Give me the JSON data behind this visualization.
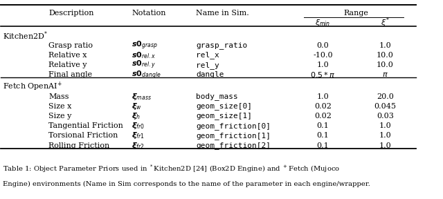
{
  "bg_color": "#ffffff",
  "text_color": "#000000",
  "font_size": 8.0,
  "caption_font_size": 7.2,
  "col_x": {
    "section": 0.005,
    "desc": 0.115,
    "notation": 0.315,
    "sim": 0.47,
    "xi_min": 0.735,
    "xi_star": 0.875
  },
  "kitchen_notations": [
    "$\\boldsymbol{s0}_{grasp}$",
    "$\\boldsymbol{s0}_{rel.x}$",
    "$\\boldsymbol{s0}_{rel.y}$",
    "$\\boldsymbol{s0}_{dangle}$"
  ],
  "fetch_notations": [
    "$\\boldsymbol{\\xi}_{mass}$",
    "$\\boldsymbol{\\xi}_{w}$",
    "$\\boldsymbol{\\xi}_{h}$",
    "$\\boldsymbol{\\xi}_{fr0}$",
    "$\\boldsymbol{\\xi}_{fr1}$",
    "$\\boldsymbol{\\xi}_{fr2}$"
  ],
  "kitchen_rows": [
    {
      "desc": "Grasp ratio",
      "sim": "grasp_ratio",
      "xi_min": "0.0",
      "xi_star": "1.0"
    },
    {
      "desc": "Relative x",
      "sim": "rel_x",
      "xi_min": "-10.0",
      "xi_star": "10.0"
    },
    {
      "desc": "Relative y",
      "sim": "rel_y",
      "xi_min": "1.0",
      "xi_star": "10.0"
    },
    {
      "desc": "Final angle",
      "sim": "dangle",
      "xi_min": "$0.5 * \\pi$",
      "xi_star": "$\\pi$"
    }
  ],
  "fetch_rows": [
    {
      "desc": "Mass",
      "sim": "body_mass",
      "xi_min": "1.0",
      "xi_star": "20.0"
    },
    {
      "desc": "Size x",
      "sim": "geom_size[0]",
      "xi_min": "0.02",
      "xi_star": "0.045"
    },
    {
      "desc": "Size y",
      "sim": "geom_size[1]",
      "xi_min": "0.02",
      "xi_star": "0.03"
    },
    {
      "desc": "Tangential Friction",
      "sim": "geom_friction[0]",
      "xi_min": "0.1",
      "xi_star": "1.0"
    },
    {
      "desc": "Torsional Friction",
      "sim": "geom_friction[1]",
      "xi_min": "0.1",
      "xi_star": "1.0"
    },
    {
      "desc": "Rolling Friction",
      "sim": "geom_friction[2]",
      "xi_min": "0.1",
      "xi_star": "1.0"
    }
  ],
  "caption_line1": "Table 1: Object Parameter Priors used in $^*$Kitchen2D [24] (Box2D Engine) and $^+$Fetch (Mujoco",
  "caption_line2": "Engine) environments (Name in Sim corresponds to the name of the parameter in each engine/wrapper."
}
